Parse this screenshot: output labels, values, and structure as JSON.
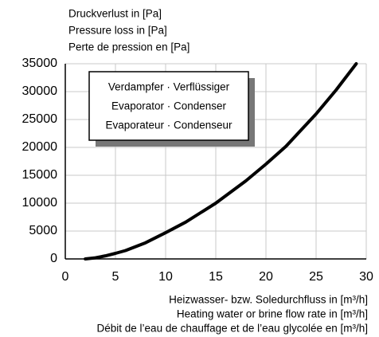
{
  "chart_data": {
    "type": "line",
    "ylabel": [
      "Druckverlust in [Pa]",
      "Pressure loss in [Pa]",
      "Perte de pression en [Pa]"
    ],
    "xlabel": [
      "Heizwasser- bzw. Soledurchfluss in [m³/h]",
      "Heating water or brine flow rate in [m³/h]",
      "Débit de l’eau de chauffage et de l’eau glycolée en [m³/h]"
    ],
    "annotation": [
      "Verdampfer · Verflüssiger",
      "Evaporator · Condenser",
      "Evaporateur · Condenseur"
    ],
    "x": [
      2,
      3,
      4,
      5,
      6,
      8,
      10,
      12,
      15,
      18,
      20,
      22,
      25,
      27,
      29
    ],
    "series": [
      {
        "name": "Verdampfer · Verflüssiger",
        "color": "#000000",
        "values": [
          0,
          200,
          550,
          1000,
          1500,
          2900,
          4700,
          6600,
          10000,
          14000,
          17000,
          20200,
          26000,
          30300,
          35000
        ]
      }
    ],
    "xlim": [
      0,
      30
    ],
    "xticks": [
      0,
      5,
      10,
      15,
      20,
      25,
      30
    ],
    "ylim": [
      0,
      35000
    ],
    "yticks": [
      0,
      5000,
      10000,
      15000,
      20000,
      25000,
      30000,
      35000
    ],
    "grid": true
  }
}
